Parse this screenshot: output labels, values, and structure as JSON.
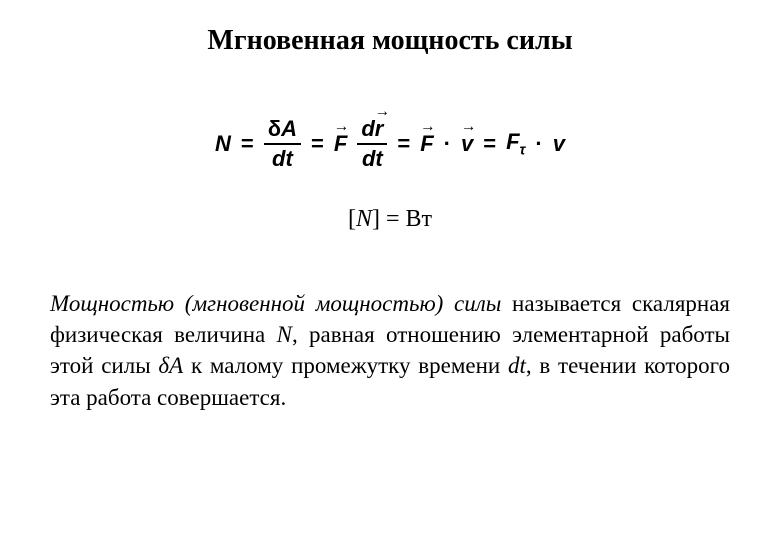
{
  "title": "Мгновенная мощность силы",
  "formula": {
    "lhs": "N",
    "eq": "=",
    "frac1_num_delta": "δ",
    "frac1_num_A": "A",
    "frac1_den": "dt",
    "F": "F",
    "frac2_num_d": "d",
    "frac2_num_r": "r",
    "frac2_den": "dt",
    "v": "v",
    "Ftau_F": "F",
    "Ftau_sub": "τ",
    "dot": "·",
    "v2": "v"
  },
  "unit": {
    "lbracket": "[",
    "var": "N",
    "rbracket": "]",
    "eq": "=",
    "value": "Вт"
  },
  "definition": {
    "t1": "Мощностью (мгновенной мощностью) силы",
    "t2": " называется скалярная физическая величина ",
    "varN": "N",
    "t3": ", равная отношению элементарной работы этой силы ",
    "dA_delta": "δ",
    "dA_A": "A",
    "t4": " к малому промежутку времени ",
    "dt": "dt",
    "t5": ", в течении которого эта работа совершается."
  },
  "style": {
    "background": "#ffffff",
    "text_color": "#000000",
    "title_fontsize": 28,
    "formula_fontsize": 22,
    "unit_fontsize": 24,
    "body_fontsize": 23
  }
}
